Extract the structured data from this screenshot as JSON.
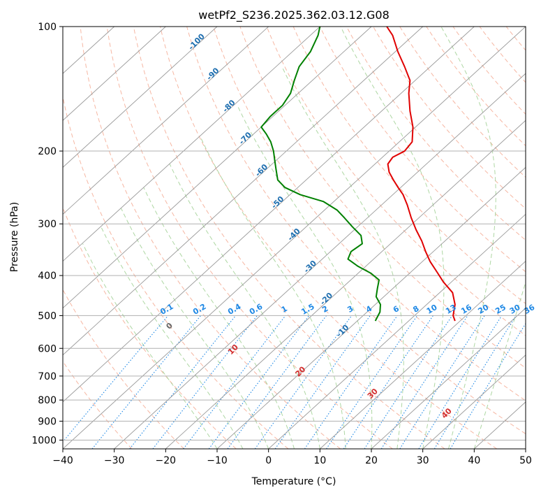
{
  "chart_data": {
    "type": "line",
    "chart_style": "skew-t log-p",
    "title": "wetPf2_S236.2025.362.03.12.G08",
    "xlabel": "Temperature (°C)",
    "ylabel": "Pressure (hPa)",
    "xlim": [
      -40,
      50
    ],
    "ylim": [
      1050,
      100
    ],
    "x_ticks": [
      -40,
      -30,
      -20,
      -10,
      0,
      10,
      20,
      30,
      40,
      50
    ],
    "y_ticks": [
      1000,
      900,
      800,
      700,
      600,
      500,
      400,
      300,
      200,
      100
    ],
    "grid": true,
    "skew": 1.0,
    "colors": {
      "temperature": "#e00000",
      "dewpoint": "#008000",
      "isotherm": "#999999",
      "dry_adiabat": "#f4a58c",
      "moist_adiabat": "#9acd8c",
      "mixing_ratio": "#1e88e5",
      "isotherm_label": "#1f6fb0",
      "dry_label": "#d32f2f",
      "zero_label": "#666666"
    },
    "series": [
      {
        "name": "Temperature",
        "p": [
          515,
          500,
          470,
          440,
          415,
          395,
          370,
          350,
          330,
          310,
          290,
          270,
          255,
          245,
          235,
          225,
          215,
          207,
          200,
          190,
          175,
          160,
          145,
          135,
          125,
          115,
          105,
          100
        ],
        "t": [
          9,
          7.5,
          5.5,
          2.5,
          -1.5,
          -4.5,
          -8.5,
          -11.5,
          -14.5,
          -18,
          -21.5,
          -25,
          -28,
          -30.5,
          -33,
          -35.5,
          -37.5,
          -38,
          -37,
          -37.5,
          -40.5,
          -44.5,
          -48.5,
          -51,
          -55,
          -59.5,
          -64,
          -67
        ]
      },
      {
        "name": "Dewpoint",
        "p": [
          515,
          490,
          470,
          450,
          430,
          410,
          395,
          380,
          365,
          350,
          335,
          320,
          305,
          290,
          278,
          265,
          255,
          245,
          235,
          222,
          212,
          200,
          190,
          182,
          175,
          165,
          155,
          145,
          135,
          125,
          115,
          105,
          100
        ],
        "t": [
          -6.5,
          -7.5,
          -9,
          -11.5,
          -13,
          -14.5,
          -17.5,
          -21.5,
          -25,
          -26,
          -25.5,
          -27.5,
          -31,
          -34.5,
          -37.5,
          -42,
          -48,
          -52.5,
          -55.5,
          -58,
          -60,
          -62.5,
          -65,
          -67.5,
          -70,
          -70.5,
          -70.5,
          -71.5,
          -73.5,
          -75.5,
          -76.5,
          -78.5,
          -80
        ]
      }
    ],
    "annotations": {
      "isotherm_labels": [
        "-100",
        "-90",
        "-80",
        "-70",
        "-60",
        "-50",
        "-40",
        "-30",
        "-20",
        "-10"
      ],
      "isotherm_label_values": [
        -100,
        -90,
        -80,
        -70,
        -60,
        -50,
        -40,
        -30,
        -20,
        -10
      ],
      "mixing_ratio_labels": [
        "0.1",
        "0.2",
        "0.4",
        "0.6",
        "1",
        "1.5",
        "2",
        "3",
        "4",
        "6",
        "8",
        "10",
        "13",
        "16",
        "20",
        "25",
        "30",
        "36"
      ],
      "mixing_ratio_values": [
        0.1,
        0.2,
        0.4,
        0.6,
        1,
        1.5,
        2,
        3,
        4,
        6,
        8,
        10,
        13,
        16,
        20,
        25,
        30,
        36
      ],
      "dry_adiabat_labels": [
        "0",
        "10",
        "20",
        "30",
        "40"
      ],
      "dry_adiabat_label_values": [
        0,
        10,
        20,
        30,
        40
      ],
      "dry_adiabat_label_pressures": [
        535,
        610,
        690,
        780,
        870
      ]
    }
  }
}
